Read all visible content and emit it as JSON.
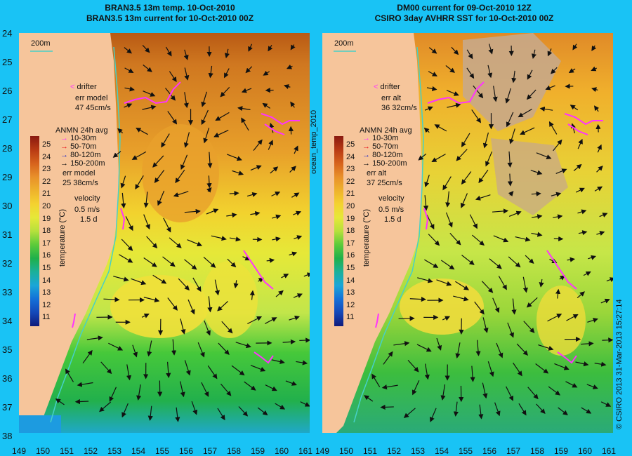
{
  "left": {
    "title1": "BRAN3.5 13m temp. 10-Oct-2010",
    "title2": "BRAN3.5 13m current for 10-Oct-2010 00Z",
    "scale_label": "200m",
    "legend": {
      "drifter": "drifter",
      "err_title": "err model",
      "err_value": "47 45cm/s",
      "anmn_title": "ANMN 24h avg",
      "depths": [
        "10-30m",
        "50-70m",
        "80-120m",
        "150-200m"
      ],
      "err2_title": "err model",
      "err2_value": "25 38cm/s",
      "velocity": "velocity",
      "vel1": "0.5 m/s",
      "vel2": "1.5 d"
    }
  },
  "right": {
    "title1": "DM00 current for 09-Oct-2010 12Z",
    "title2": "CSIRO 3day AVHRR SST for 10-Oct-2010 00Z",
    "scale_label": "200m",
    "legend": {
      "drifter": "drifter",
      "err_title": "err alt",
      "err_value": "36 32cm/s",
      "anmn_title": "ANMN 24h avg",
      "depths": [
        "10-30m",
        "50-70m",
        "80-120m",
        "150-200m"
      ],
      "err2_title": "err alt",
      "err2_value": "37 25cm/s",
      "velocity": "velocity",
      "vel1": "0.5 m/s",
      "vel2": "1.5 d"
    }
  },
  "colorbar": {
    "label": "temperature (°C)",
    "ticks": [
      "25",
      "24",
      "23",
      "22",
      "21",
      "20",
      "19",
      "18",
      "17",
      "16",
      "15",
      "14",
      "13",
      "12",
      "11"
    ]
  },
  "side_label": "ocean_temp_2010",
  "credit": "© CSIRO 2013   31-Mar-2013 15:27:14",
  "y_ticks": [
    "24",
    "25",
    "26",
    "27",
    "28",
    "29",
    "30",
    "31",
    "32",
    "33",
    "34",
    "35",
    "36",
    "37",
    "38"
  ],
  "x_ticks": [
    "149",
    "150",
    "151",
    "152",
    "153",
    "154",
    "155",
    "156",
    "157",
    "158",
    "159",
    "160",
    "161"
  ],
  "depth_colors": [
    "#ff33ff",
    "#e8111a",
    "#1522c8",
    "#111111"
  ]
}
